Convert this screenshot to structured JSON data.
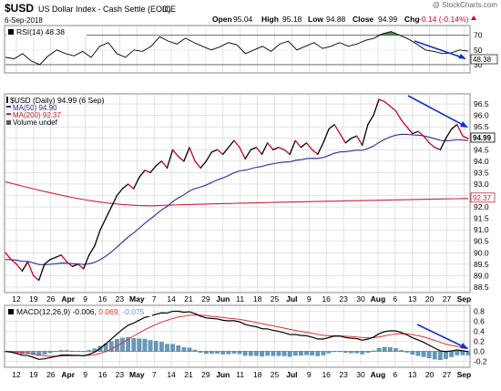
{
  "header": {
    "symbol": "$USD",
    "name": "US Dollar Index - Cash Settle (EOD)",
    "exchange": "ICE",
    "date": "6-Sep-2018",
    "brand": "@ StockCharts.com",
    "open_label": "Open",
    "open": "95.04",
    "high_label": "High",
    "high": "95.18",
    "low_label": "Low",
    "low": "94.88",
    "close_label": "Close",
    "close": "94.99",
    "chg_label": "Chg",
    "chg": "-0.14 (-0.14%)"
  },
  "legend": {
    "rsi": "RSI(14) 48.38",
    "price": "$USD (Daily) 94.99 (6 Sep)",
    "ma50": "MA(50) 94.90",
    "ma200": "MA(200) 92.37",
    "volume": "Volume undef",
    "macd_prefix": "MACD(12,26,9)",
    "macd_value": "-0.006,",
    "macd_signal": "0.069,",
    "macd_hist": "-0.075"
  },
  "colors": {
    "price_up": "#000000",
    "price_down": "#cc0033",
    "ma50": "#2b2b9e",
    "ma200": "#cc2233",
    "macd_signal": "#e03030",
    "histogram": "#6699bb",
    "trendline": "#1133cc",
    "rsi_fill": "#2e7d32",
    "grid": "#d0d0d0"
  },
  "chart_data": [
    {
      "type": "line",
      "panel": "rsi",
      "y_ticks": [
        "70",
        "50",
        "30"
      ],
      "ylim": [
        20,
        82
      ],
      "levels": [
        70,
        30
      ],
      "series": [
        {
          "name": "RSI(14)",
          "last": 48.38,
          "values": [
            40,
            38,
            45,
            35,
            30,
            42,
            50,
            45,
            42,
            48,
            40,
            55,
            60,
            45,
            40,
            50,
            48,
            55,
            68,
            62,
            58,
            66,
            60,
            55,
            50,
            54,
            60,
            57,
            45,
            50,
            55,
            48,
            58,
            62,
            50,
            55,
            60,
            52,
            55,
            60,
            55,
            58,
            63,
            66,
            72,
            75,
            70,
            65,
            58,
            50,
            48,
            45,
            46,
            50,
            48.38
          ]
        }
      ],
      "trend_arrow": "down"
    },
    {
      "type": "line",
      "panel": "price",
      "x_tick_labels": [
        "12",
        "19",
        "26",
        "Apr",
        "9",
        "16",
        "23",
        "May",
        "7",
        "14",
        "21",
        "29",
        "Jun",
        "11",
        "18",
        "25",
        "Jul",
        "9",
        "16",
        "23",
        "30",
        "Aug",
        "6",
        "13",
        "20",
        "27",
        "Sep"
      ],
      "x_tick_bold": [
        "Apr",
        "May",
        "Jun",
        "Jul",
        "Aug",
        "Sep"
      ],
      "y_ticks": [
        "96.5",
        "96.0",
        "95.5",
        "95.0",
        "94.5",
        "94.0",
        "93.5",
        "93.0",
        "92.5",
        "92.0",
        "91.5",
        "91.0",
        "90.5",
        "90.0",
        "89.5",
        "89.0",
        "88.5"
      ],
      "ylim": [
        88.3,
        96.9
      ],
      "last_price_label": "94.99",
      "ma200_label": "92.37",
      "series": [
        {
          "name": "$USD",
          "values": [
            90.0,
            89.7,
            89.5,
            89.2,
            89.6,
            89.0,
            88.8,
            89.5,
            89.7,
            89.8,
            89.9,
            89.6,
            89.4,
            89.5,
            89.3,
            89.9,
            90.3,
            91.0,
            91.5,
            92.0,
            92.5,
            92.8,
            93.0,
            92.8,
            93.3,
            93.6,
            93.5,
            93.8,
            94.0,
            93.7,
            94.5,
            94.2,
            94.0,
            94.6,
            94.0,
            93.7,
            94.0,
            94.4,
            94.5,
            94.3,
            94.6,
            94.9,
            94.6,
            94.1,
            94.5,
            94.6,
            94.3,
            94.8,
            94.5,
            94.6,
            94.5,
            94.3,
            94.9,
            94.6,
            94.8,
            94.5,
            94.3,
            94.8,
            95.4,
            95.6,
            95.2,
            94.8,
            95.0,
            95.1,
            94.7,
            95.6,
            96.0,
            96.7,
            96.6,
            96.4,
            96.2,
            95.8,
            95.5,
            95.2,
            95.3,
            95.1,
            94.8,
            94.6,
            94.5,
            95.0,
            95.4,
            95.6,
            95.1,
            94.99
          ]
        },
        {
          "name": "MA(50)",
          "last": 94.9
        },
        {
          "name": "MA(200)",
          "last": 92.37
        }
      ],
      "trend_arrow": "down"
    },
    {
      "type": "line",
      "panel": "macd",
      "y_ticks": [
        "0.8",
        "0.6",
        "0.4",
        "0.2",
        "0.0",
        "-0.2"
      ],
      "ylim": [
        -0.3,
        0.9
      ],
      "series": [
        {
          "name": "MACD(12,26,9)",
          "last": -0.006
        },
        {
          "name": "Signal",
          "last": 0.069
        },
        {
          "name": "Histogram",
          "last": -0.075
        }
      ],
      "trend_arrow": "down"
    }
  ]
}
